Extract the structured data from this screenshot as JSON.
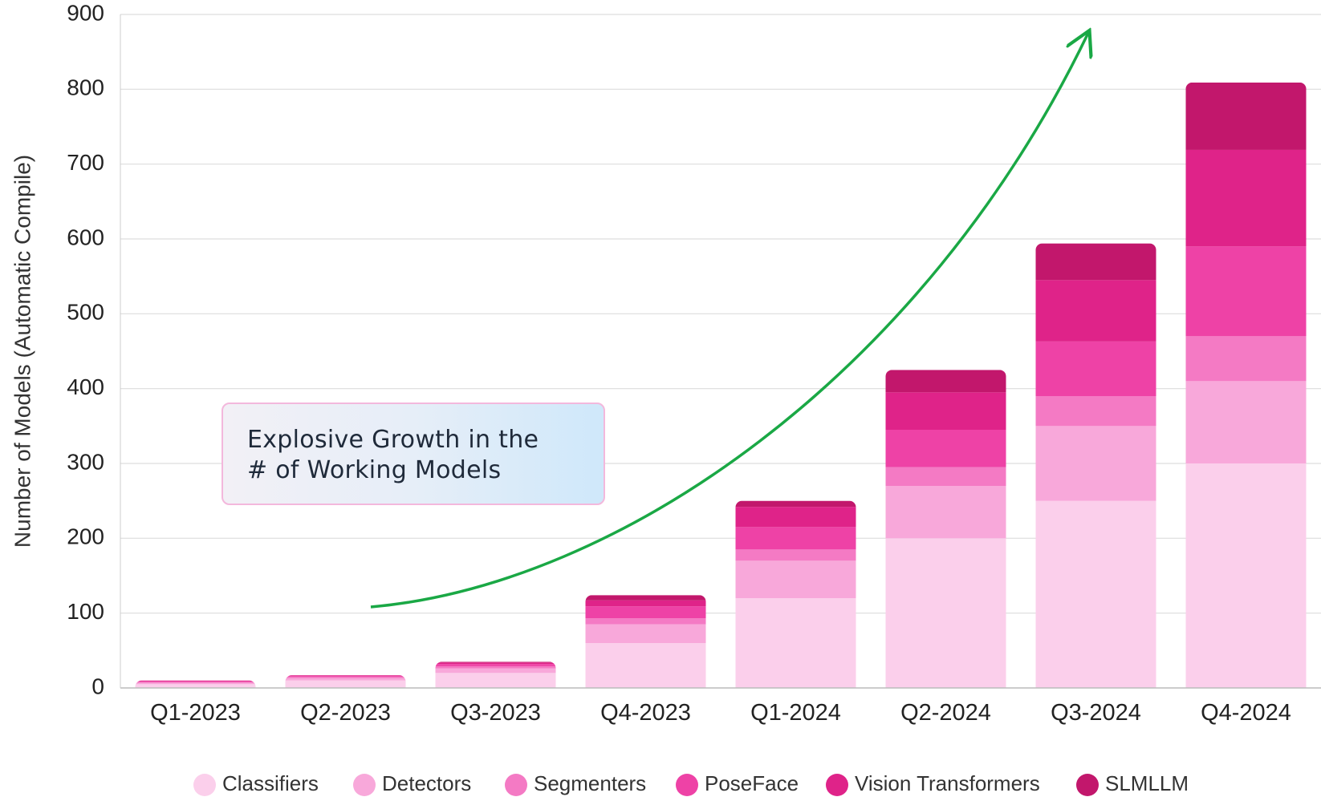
{
  "chart_data": {
    "type": "bar",
    "stacked": true,
    "categories": [
      "Q1-2023",
      "Q2-2023",
      "Q3-2023",
      "Q4-2023",
      "Q1-2024",
      "Q2-2024",
      "Q3-2024",
      "Q4-2024"
    ],
    "series": [
      {
        "name": "Classifiers",
        "color": "#fbcfeb",
        "values": [
          5,
          10,
          20,
          60,
          120,
          200,
          250,
          300
        ]
      },
      {
        "name": "Detectors",
        "color": "#f8a8da",
        "values": [
          2,
          3,
          6,
          25,
          50,
          70,
          100,
          110
        ]
      },
      {
        "name": "Segmenters",
        "color": "#f47ac4",
        "values": [
          1,
          2,
          3,
          8,
          15,
          25,
          40,
          60
        ]
      },
      {
        "name": "PoseFace",
        "color": "#ee42a6",
        "values": [
          1,
          1,
          3,
          16,
          30,
          50,
          73,
          120
        ]
      },
      {
        "name": "Vision Transformers",
        "color": "#df2389",
        "values": [
          1,
          1,
          2,
          8,
          27,
          50,
          82,
          129
        ]
      },
      {
        "name": "SLMLLM",
        "color": "#c2176c",
        "values": [
          0,
          0,
          1,
          7,
          8,
          30,
          49,
          90
        ]
      }
    ],
    "ylabel": "Number of Models (Automatic Compile)",
    "xlabel": "",
    "ylim": [
      0,
      900
    ],
    "yticks": [
      0,
      100,
      200,
      300,
      400,
      500,
      600,
      700,
      800,
      900
    ],
    "grid": true,
    "legend_position": "bottom",
    "annotations": [
      {
        "type": "text-box",
        "lines": [
          "Explosive Growth in the",
          "# of Working Models"
        ]
      },
      {
        "type": "arrow",
        "color": "#1aa845",
        "description": "green upward curved growth arrow"
      }
    ]
  }
}
